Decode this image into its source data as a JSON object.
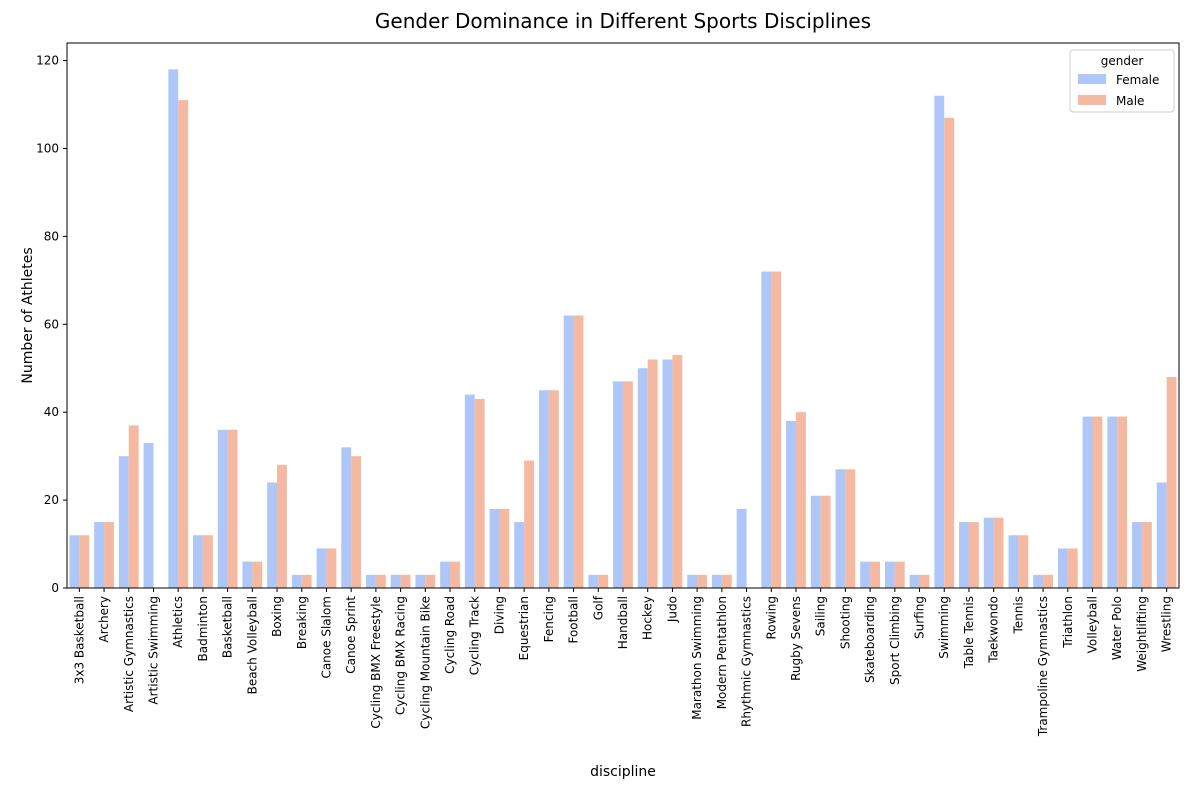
{
  "chart_data": {
    "type": "bar",
    "title": "Gender Dominance in Different Sports Disciplines",
    "xlabel": "discipline",
    "ylabel": "Number of Athletes",
    "ylim": [
      0,
      124
    ],
    "yticks": [
      0,
      20,
      40,
      60,
      80,
      100,
      120
    ],
    "grid": false,
    "legend": {
      "title": "gender",
      "position": "top-right"
    },
    "categories": [
      "3x3 Basketball",
      "Archery",
      "Artistic Gymnastics",
      "Artistic Swimming",
      "Athletics",
      "Badminton",
      "Basketball",
      "Beach Volleyball",
      "Boxing",
      "Breaking",
      "Canoe Slalom",
      "Canoe Sprint",
      "Cycling BMX Freestyle",
      "Cycling BMX Racing",
      "Cycling Mountain Bike",
      "Cycling Road",
      "Cycling Track",
      "Diving",
      "Equestrian",
      "Fencing",
      "Football",
      "Golf",
      "Handball",
      "Hockey",
      "Judo",
      "Marathon Swimming",
      "Modern Pentathlon",
      "Rhythmic Gymnastics",
      "Rowing",
      "Rugby Sevens",
      "Sailing",
      "Shooting",
      "Skateboarding",
      "Sport Climbing",
      "Surfing",
      "Swimming",
      "Table Tennis",
      "Taekwondo",
      "Tennis",
      "Trampoline Gymnastics",
      "Triathlon",
      "Volleyball",
      "Water Polo",
      "Weightlifting",
      "Wrestling"
    ],
    "series": [
      {
        "name": "Female",
        "color": "#aec7f8",
        "values": [
          12,
          15,
          30,
          33,
          118,
          12,
          36,
          6,
          24,
          3,
          9,
          32,
          3,
          3,
          3,
          6,
          44,
          18,
          15,
          45,
          62,
          3,
          47,
          50,
          52,
          3,
          3,
          18,
          72,
          38,
          21,
          27,
          6,
          6,
          3,
          112,
          15,
          16,
          12,
          3,
          9,
          39,
          39,
          15,
          24
        ]
      },
      {
        "name": "Male",
        "color": "#f4b9a0",
        "values": [
          12,
          15,
          37,
          0,
          111,
          12,
          36,
          6,
          28,
          3,
          9,
          30,
          3,
          3,
          3,
          6,
          43,
          18,
          29,
          45,
          62,
          3,
          47,
          52,
          53,
          3,
          3,
          0,
          72,
          40,
          21,
          27,
          6,
          6,
          3,
          107,
          15,
          16,
          12,
          3,
          9,
          39,
          39,
          15,
          48
        ]
      }
    ]
  }
}
